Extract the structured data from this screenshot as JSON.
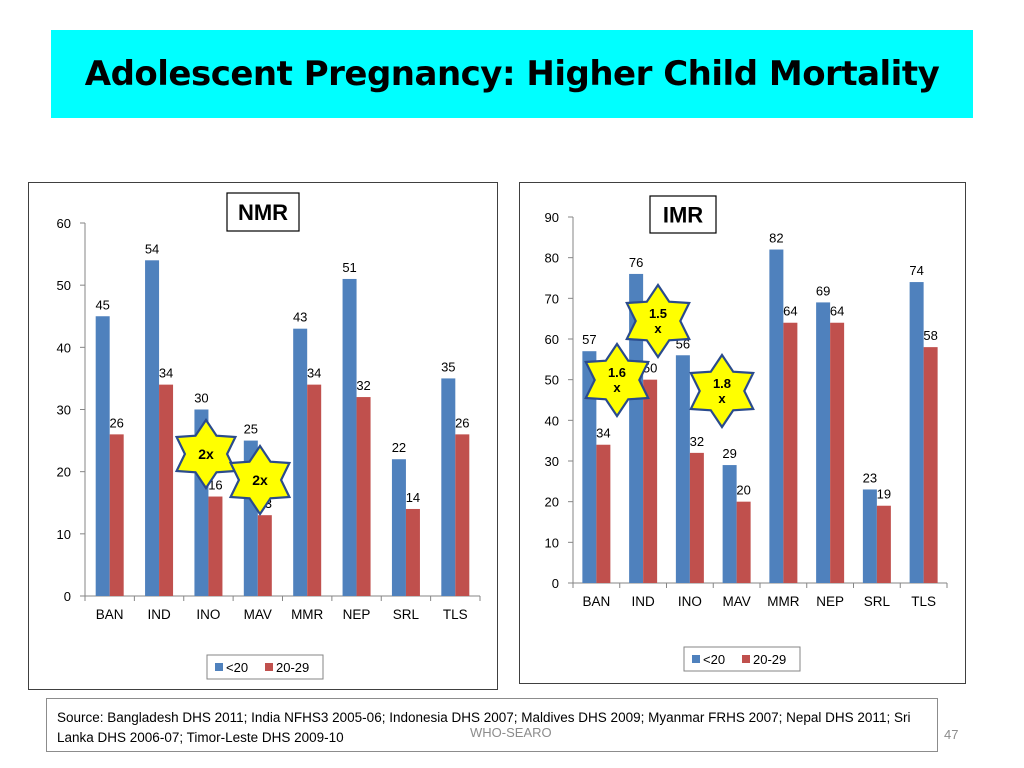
{
  "slide": {
    "title": "Adolescent Pregnancy: Higher Child Mortality",
    "source": "Source: Bangladesh DHS 2011; India NFHS3 2005-06; Indonesia DHS 2007; Maldives DHS 2009; Myanmar FRHS 2007; Nepal DHS 2011; Sri Lanka DHS 2006-07; Timor-Leste DHS 2009-10",
    "organization": "WHO-SEARO",
    "page_number": "47"
  },
  "colors": {
    "title_bg": "#00ffff",
    "series_under20": "#4f81bd",
    "series_20_29": "#c0504d",
    "star_fill": "#ffff00",
    "star_stroke": "#2a4b8d"
  },
  "chart_data": [
    {
      "type": "bar",
      "title": "NMR",
      "categories": [
        "BAN",
        "IND",
        "INO",
        "MAV",
        "MMR",
        "NEP",
        "SRL",
        "TLS"
      ],
      "series": [
        {
          "name": "<20",
          "values": [
            45,
            54,
            30,
            25,
            43,
            51,
            22,
            35
          ]
        },
        {
          "name": "20-29",
          "values": [
            26,
            34,
            16,
            13,
            34,
            32,
            14,
            26
          ]
        }
      ],
      "ylim": [
        0,
        60
      ],
      "yticks": [
        0,
        10,
        20,
        30,
        40,
        50,
        60
      ],
      "legend": "bottom",
      "grid": false,
      "annotations": [
        {
          "text": "2x",
          "category": "INO"
        },
        {
          "text": "2x",
          "category": "MAV"
        }
      ]
    },
    {
      "type": "bar",
      "title": "IMR",
      "categories": [
        "BAN",
        "IND",
        "INO",
        "MAV",
        "MMR",
        "NEP",
        "SRL",
        "TLS"
      ],
      "series": [
        {
          "name": "<20",
          "values": [
            57,
            76,
            56,
            29,
            82,
            69,
            23,
            74
          ]
        },
        {
          "name": "20-29",
          "values": [
            34,
            50,
            32,
            20,
            64,
            64,
            19,
            58
          ]
        }
      ],
      "ylim": [
        0,
        90
      ],
      "yticks": [
        0,
        10,
        20,
        30,
        40,
        50,
        60,
        70,
        80,
        90
      ],
      "legend": "bottom",
      "grid": false,
      "annotations": [
        {
          "text": "1.5\nx",
          "category": "IND"
        },
        {
          "text": "1.6\nx",
          "category": "BAN"
        },
        {
          "text": "1.8\nx",
          "category": "INO"
        }
      ]
    }
  ]
}
